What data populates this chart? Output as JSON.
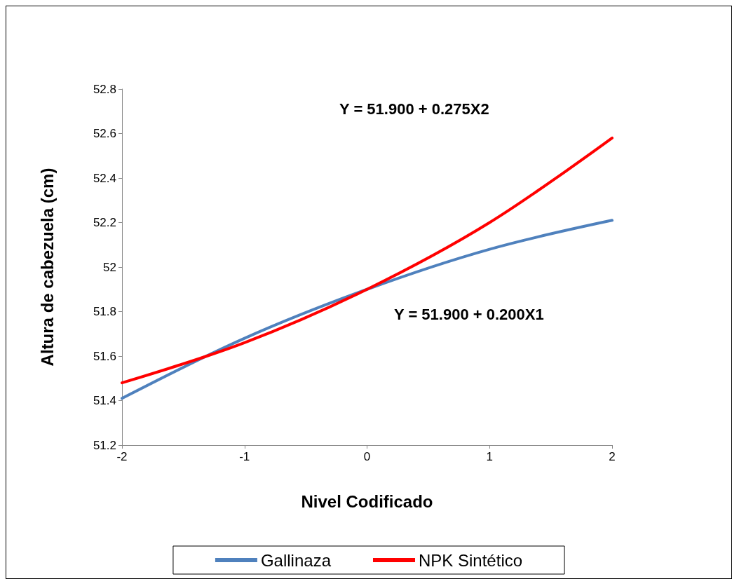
{
  "chart_data": {
    "type": "line",
    "xlabel": "Nivel Codificado",
    "ylabel": "Altura de cabezuela (cm)",
    "x": [
      -2,
      -1,
      0,
      1,
      2
    ],
    "series": [
      {
        "name": "Gallinaza",
        "color": "#4f81bd",
        "values": [
          51.41,
          51.68,
          51.9,
          52.08,
          52.21
        ]
      },
      {
        "name": "NPK Sintético",
        "color": "#ff0000",
        "values": [
          51.48,
          51.66,
          51.9,
          52.2,
          52.58
        ]
      }
    ],
    "xlim": [
      -2,
      2
    ],
    "xticks": [
      -2,
      -1,
      0,
      1,
      2
    ],
    "ylim": [
      51.2,
      52.8
    ],
    "yticks": [
      51.2,
      51.4,
      51.6,
      51.8,
      52,
      52.2,
      52.4,
      52.6,
      52.8
    ],
    "annotations": [
      "Y = 51.900 + 0.275X2",
      "Y = 51.900 + 0.200X1"
    ],
    "grid": false,
    "legend": "bottom",
    "marker": "none",
    "line_style": "solid"
  }
}
